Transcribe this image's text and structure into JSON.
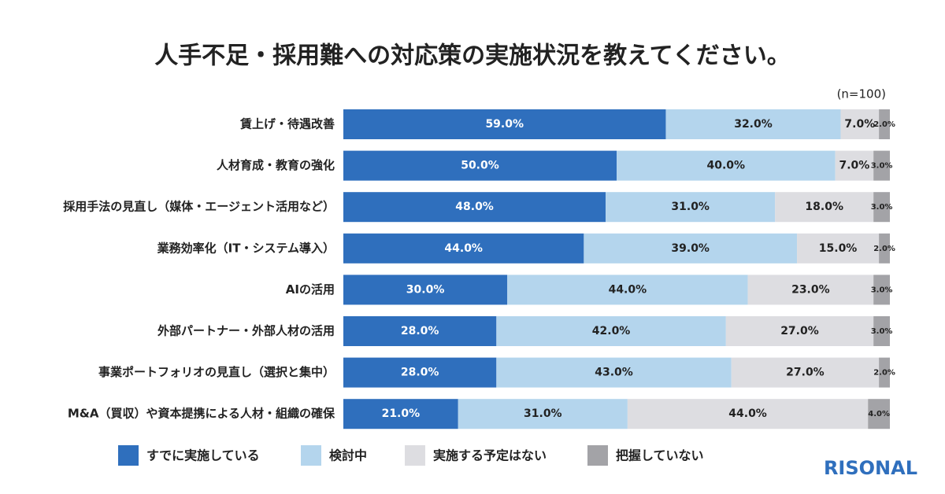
{
  "chart_data": {
    "type": "stacked-bar",
    "orientation": "horizontal",
    "title": "人手不足・採用難への対応策の実施状況を教えてください。",
    "note": "(n=100)",
    "logo": "RISONAL",
    "categories": [
      "賃上げ・待遇改善",
      "人材育成・教育の強化",
      "採用手法の見直し（媒体・エージェント活用など）",
      "業務効率化（IT・システム導入）",
      "AIの活用",
      "外部パートナー・外部人材の活用",
      "事業ポートフォリオの見直し（選択と集中）",
      "M&A（買収）や資本提携による人材・組織の確保"
    ],
    "series": [
      {
        "name": "すでに実施している",
        "color": "#2f6fbd",
        "values": [
          59,
          50,
          48,
          44,
          30,
          28,
          28,
          21
        ],
        "value_labels": [
          "59.0%",
          "50.0%",
          "48.0%",
          "44.0%",
          "30.0%",
          "28.0%",
          "28.0%",
          "21.0%"
        ]
      },
      {
        "name": "検討中",
        "color": "#b4d5ed",
        "values": [
          32,
          40,
          31,
          39,
          44,
          42,
          43,
          31
        ],
        "value_labels": [
          "32.0%",
          "40.0%",
          "31.0%",
          "39.0%",
          "44.0%",
          "42.0%",
          "43.0%",
          "31.0%"
        ]
      },
      {
        "name": "実施する予定はない",
        "color": "#dddde1",
        "values": [
          7,
          7,
          18,
          15,
          23,
          27,
          27,
          44
        ],
        "value_labels": [
          "7.0%",
          "7.0%",
          "18.0%",
          "15.0%",
          "23.0%",
          "27.0%",
          "27.0%",
          "44.0%"
        ]
      },
      {
        "name": "把握していない",
        "color": "#a3a3a7",
        "values": [
          2,
          3,
          3,
          2,
          3,
          3,
          2,
          4
        ],
        "value_labels": [
          "2.0%",
          "3.0%",
          "3.0%",
          "2.0%",
          "3.0%",
          "3.0%",
          "2.0%",
          "4.0%"
        ]
      }
    ],
    "legend": "bottom"
  }
}
